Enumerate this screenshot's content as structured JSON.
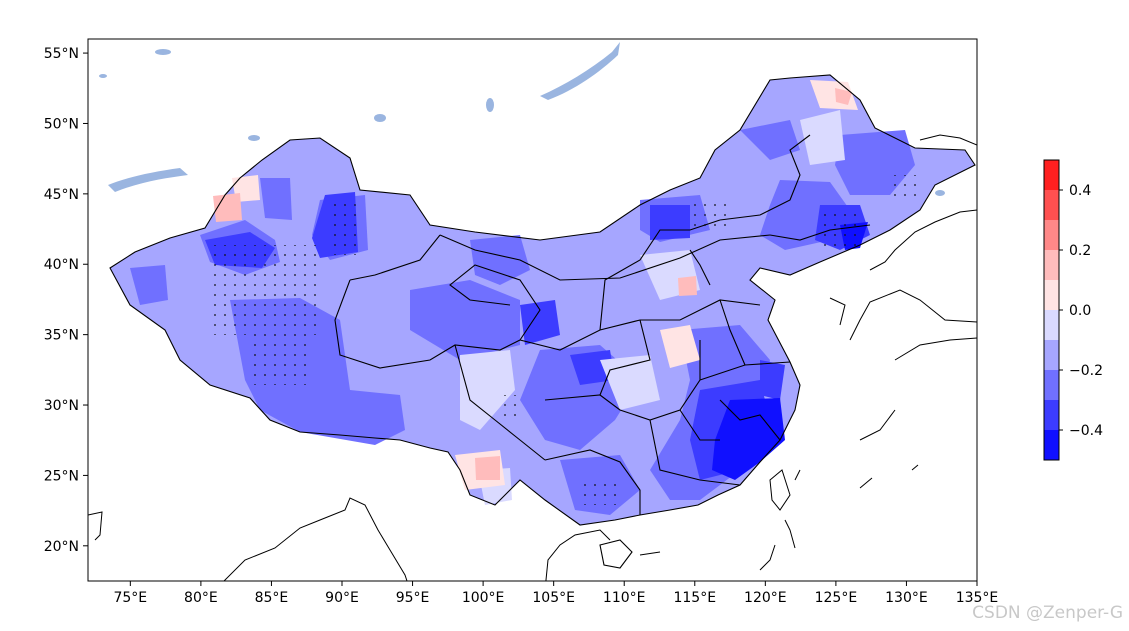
{
  "figure": {
    "type": "filled-contour map",
    "region": "China",
    "projection": "PlateCarree",
    "lon_range": [
      72,
      135
    ],
    "lat_range": [
      17.5,
      56
    ],
    "land_visible": true,
    "stipple": "dots mark significant cells"
  },
  "axes": {
    "x_ticks": [
      "75°E",
      "80°E",
      "85°E",
      "90°E",
      "95°E",
      "100°E",
      "105°E",
      "110°E",
      "115°E",
      "120°E",
      "125°E",
      "130°E",
      "135°E"
    ],
    "y_ticks": [
      "55°N",
      "50°N",
      "45°N",
      "40°N",
      "35°N",
      "30°N",
      "25°N",
      "20°N"
    ]
  },
  "colorbar": {
    "levels": [
      -0.5,
      -0.4,
      -0.3,
      -0.2,
      -0.1,
      0.0,
      0.1,
      0.2,
      0.3,
      0.4,
      0.5
    ],
    "tick_labels": [
      "0.4",
      "0.2",
      "0.0",
      "−0.2",
      "−0.4"
    ],
    "colors": [
      "#1010ff",
      "#3c3cff",
      "#7070ff",
      "#a6a6ff",
      "#dadaff",
      "#ffe4e4",
      "#ffbcbc",
      "#ff8888",
      "#ff5050",
      "#ff2020"
    ]
  },
  "colors": {
    "water": "#9ab5e0",
    "border": "#000000"
  },
  "watermark": "CSDN @Zenper-G"
}
